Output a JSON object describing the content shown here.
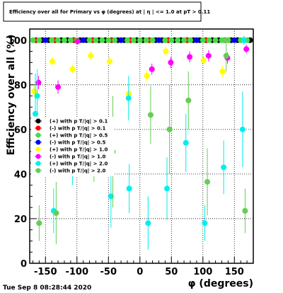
{
  "chart_data": {
    "type": "scatter",
    "title": "Efficiency over all for Primary vs φ (degrees) at | η | <= 1.0 at pT > 0.11",
    "xlabel": "φ (degrees)",
    "ylabel": "Efficiency over all (%)",
    "xlim": [
      -175,
      180
    ],
    "ylim": [
      0,
      105
    ],
    "xticks": [
      -150,
      -100,
      -50,
      0,
      50,
      100,
      150
    ],
    "yticks": [
      0,
      20,
      40,
      60,
      80,
      100
    ],
    "grid": true,
    "legend_placement": "middle-left",
    "timestamp": "Tue Sep  8 08:28:44 2020",
    "series": [
      {
        "name": "(+) with p T/|q| > 0.1",
        "color": "#000000",
        "points": [
          {
            "x": -165,
            "y": 100,
            "err": 0
          },
          {
            "x": -155,
            "y": 100,
            "err": 0
          },
          {
            "x": -145,
            "y": 100,
            "err": 0
          },
          {
            "x": -135,
            "y": 100,
            "err": 0
          },
          {
            "x": -125,
            "y": 100,
            "err": 0
          },
          {
            "x": -115,
            "y": 100,
            "err": 0
          },
          {
            "x": -105,
            "y": 100,
            "err": 0
          },
          {
            "x": -95,
            "y": 100,
            "err": 0
          },
          {
            "x": -85,
            "y": 100,
            "err": 0
          },
          {
            "x": -75,
            "y": 100,
            "err": 0
          },
          {
            "x": -65,
            "y": 100,
            "err": 0
          },
          {
            "x": -55,
            "y": 100,
            "err": 0
          },
          {
            "x": -45,
            "y": 100,
            "err": 0
          },
          {
            "x": -35,
            "y": 100,
            "err": 0
          },
          {
            "x": -25,
            "y": 100,
            "err": 0
          },
          {
            "x": -15,
            "y": 100,
            "err": 0
          },
          {
            "x": -5,
            "y": 100,
            "err": 0
          },
          {
            "x": 5,
            "y": 100,
            "err": 0
          },
          {
            "x": 15,
            "y": 100,
            "err": 0
          },
          {
            "x": 25,
            "y": 100,
            "err": 0
          },
          {
            "x": 35,
            "y": 100,
            "err": 0
          },
          {
            "x": 45,
            "y": 100,
            "err": 0
          },
          {
            "x": 55,
            "y": 100,
            "err": 0
          },
          {
            "x": 65,
            "y": 100,
            "err": 0
          },
          {
            "x": 75,
            "y": 100,
            "err": 0
          },
          {
            "x": 85,
            "y": 100,
            "err": 0
          },
          {
            "x": 95,
            "y": 100,
            "err": 0
          },
          {
            "x": 105,
            "y": 100,
            "err": 0
          },
          {
            "x": 115,
            "y": 100,
            "err": 0
          },
          {
            "x": 125,
            "y": 100,
            "err": 0
          },
          {
            "x": 135,
            "y": 100,
            "err": 0
          },
          {
            "x": 145,
            "y": 100,
            "err": 0
          },
          {
            "x": 155,
            "y": 100,
            "err": 0
          },
          {
            "x": 165,
            "y": 100,
            "err": 0
          },
          {
            "x": 175,
            "y": 100,
            "err": 0
          }
        ]
      },
      {
        "name": "(-) with p T/|q| > 0.1",
        "color": "#ff0000",
        "points": [
          {
            "x": -165,
            "y": 100,
            "err": 0
          },
          {
            "x": -135,
            "y": 100,
            "err": 0
          },
          {
            "x": -105,
            "y": 100,
            "err": 0
          },
          {
            "x": -75,
            "y": 100,
            "err": 0
          },
          {
            "x": -45,
            "y": 100,
            "err": 0
          },
          {
            "x": -15,
            "y": 100,
            "err": 0
          },
          {
            "x": 15,
            "y": 100,
            "err": 0
          },
          {
            "x": 45,
            "y": 100,
            "err": 0
          },
          {
            "x": 75,
            "y": 100,
            "err": 0
          },
          {
            "x": 105,
            "y": 100,
            "err": 0
          },
          {
            "x": 135,
            "y": 100,
            "err": 0
          },
          {
            "x": 165,
            "y": 100,
            "err": 0
          }
        ]
      },
      {
        "name": "(+) with p T/|q| > 0.5",
        "color": "#44dd44",
        "points": [
          {
            "x": -170,
            "y": 100,
            "err": 0
          },
          {
            "x": -160,
            "y": 100,
            "err": 0
          },
          {
            "x": -150,
            "y": 100,
            "err": 0
          },
          {
            "x": -140,
            "y": 100,
            "err": 0
          },
          {
            "x": -130,
            "y": 100,
            "err": 0
          },
          {
            "x": -120,
            "y": 100,
            "err": 0
          },
          {
            "x": -110,
            "y": 100,
            "err": 0
          },
          {
            "x": -100,
            "y": 100,
            "err": 0
          },
          {
            "x": -90,
            "y": 100,
            "err": 0
          },
          {
            "x": -80,
            "y": 100,
            "err": 0
          },
          {
            "x": -70,
            "y": 100,
            "err": 0
          },
          {
            "x": -60,
            "y": 100,
            "err": 0
          },
          {
            "x": -50,
            "y": 100,
            "err": 0
          },
          {
            "x": -40,
            "y": 100,
            "err": 0
          },
          {
            "x": -30,
            "y": 100,
            "err": 0
          },
          {
            "x": -20,
            "y": 100,
            "err": 0
          },
          {
            "x": -10,
            "y": 100,
            "err": 0
          },
          {
            "x": 0,
            "y": 100,
            "err": 0
          },
          {
            "x": 10,
            "y": 100,
            "err": 0
          },
          {
            "x": 20,
            "y": 100,
            "err": 0
          },
          {
            "x": 30,
            "y": 100,
            "err": 0
          },
          {
            "x": 40,
            "y": 100,
            "err": 0
          },
          {
            "x": 50,
            "y": 100,
            "err": 0
          },
          {
            "x": 60,
            "y": 100,
            "err": 0
          },
          {
            "x": 70,
            "y": 100,
            "err": 0
          },
          {
            "x": 80,
            "y": 100,
            "err": 0
          },
          {
            "x": 90,
            "y": 100,
            "err": 0
          },
          {
            "x": 100,
            "y": 100,
            "err": 0
          },
          {
            "x": 110,
            "y": 100,
            "err": 0
          },
          {
            "x": 120,
            "y": 100,
            "err": 0
          },
          {
            "x": 130,
            "y": 100,
            "err": 0
          },
          {
            "x": 140,
            "y": 100,
            "err": 0
          },
          {
            "x": 150,
            "y": 100,
            "err": 0
          },
          {
            "x": 160,
            "y": 100,
            "err": 0
          },
          {
            "x": 170,
            "y": 100,
            "err": 0
          }
        ]
      },
      {
        "name": "(-) with p T/|q| > 0.5",
        "color": "#0000ff",
        "points": [
          {
            "x": -150,
            "y": 100,
            "err": 0
          },
          {
            "x": -90,
            "y": 100,
            "err": 0
          },
          {
            "x": -30,
            "y": 100,
            "err": 0
          },
          {
            "x": 30,
            "y": 100,
            "err": 0
          },
          {
            "x": 90,
            "y": 100,
            "err": 0
          },
          {
            "x": 150,
            "y": 100,
            "err": 0
          }
        ]
      },
      {
        "name": "(+) with p T/|q| > 1.0",
        "color": "#ffff00",
        "points": [
          {
            "x": -168,
            "y": 77,
            "err": 3
          },
          {
            "x": -139,
            "y": 90.5,
            "err": 2
          },
          {
            "x": -107,
            "y": 87,
            "err": 2
          },
          {
            "x": -78,
            "y": 93,
            "err": 2
          },
          {
            "x": -48,
            "y": 90.5,
            "err": 2
          },
          {
            "x": -18,
            "y": 76,
            "err": 3
          },
          {
            "x": 11,
            "y": 84,
            "err": 2.5
          },
          {
            "x": 41,
            "y": 95,
            "err": 2
          },
          {
            "x": 101,
            "y": 91,
            "err": 2
          },
          {
            "x": 131,
            "y": 86,
            "err": 2.5
          }
        ]
      },
      {
        "name": "(-) with p T/|q| > 1.0",
        "color": "#ff00ff",
        "points": [
          {
            "x": -161,
            "y": 81,
            "err": 3
          },
          {
            "x": -130,
            "y": 79,
            "err": 3
          },
          {
            "x": -99,
            "y": 99.5,
            "err": 1.5
          },
          {
            "x": 19,
            "y": 87,
            "err": 2.5
          },
          {
            "x": 49,
            "y": 90,
            "err": 2.5
          },
          {
            "x": 79,
            "y": 92.5,
            "err": 2.5
          },
          {
            "x": 109,
            "y": 93,
            "err": 2.5
          },
          {
            "x": 139,
            "y": 92,
            "err": 2.5
          },
          {
            "x": 169,
            "y": 96,
            "err": 2
          }
        ]
      },
      {
        "name": "(+) with p T/|q| > 2.0",
        "color": "#00eeee",
        "points": [
          {
            "x": -166,
            "y": 67,
            "err": 18
          },
          {
            "x": -163,
            "y": 75,
            "err": 12
          },
          {
            "x": -137,
            "y": 23.5,
            "err": 10
          },
          {
            "x": -107,
            "y": 43,
            "err": 8
          },
          {
            "x": -46,
            "y": 30,
            "err": 14
          },
          {
            "x": -17,
            "y": 33.5,
            "err": 11
          },
          {
            "x": -18,
            "y": 74,
            "err": 10
          },
          {
            "x": 13,
            "y": 18,
            "err": 12
          },
          {
            "x": 43,
            "y": 33.5,
            "err": 14
          },
          {
            "x": 73,
            "y": 54,
            "err": 13
          },
          {
            "x": 103,
            "y": 18,
            "err": 8
          },
          {
            "x": 133,
            "y": 43,
            "err": 12
          },
          {
            "x": 163,
            "y": 60,
            "err": 17
          },
          {
            "x": 165,
            "y": 100,
            "err": 2
          }
        ]
      },
      {
        "name": "(-) with p T/|q| > 2.0",
        "color": "#66cc55",
        "points": [
          {
            "x": -160,
            "y": 18,
            "err": 8
          },
          {
            "x": -133,
            "y": 22.5,
            "err": 14
          },
          {
            "x": -73,
            "y": 49.5,
            "err": 13
          },
          {
            "x": -43,
            "y": 50,
            "err": 25
          },
          {
            "x": 17,
            "y": 66.5,
            "err": 13
          },
          {
            "x": 47,
            "y": 60,
            "err": 20
          },
          {
            "x": 77,
            "y": 73,
            "err": 13
          },
          {
            "x": 107,
            "y": 36.5,
            "err": 15
          },
          {
            "x": 137,
            "y": 93,
            "err": 7
          },
          {
            "x": 136,
            "y": 100,
            "err": 0
          },
          {
            "x": 167,
            "y": 23.5,
            "err": 10
          }
        ]
      }
    ]
  }
}
